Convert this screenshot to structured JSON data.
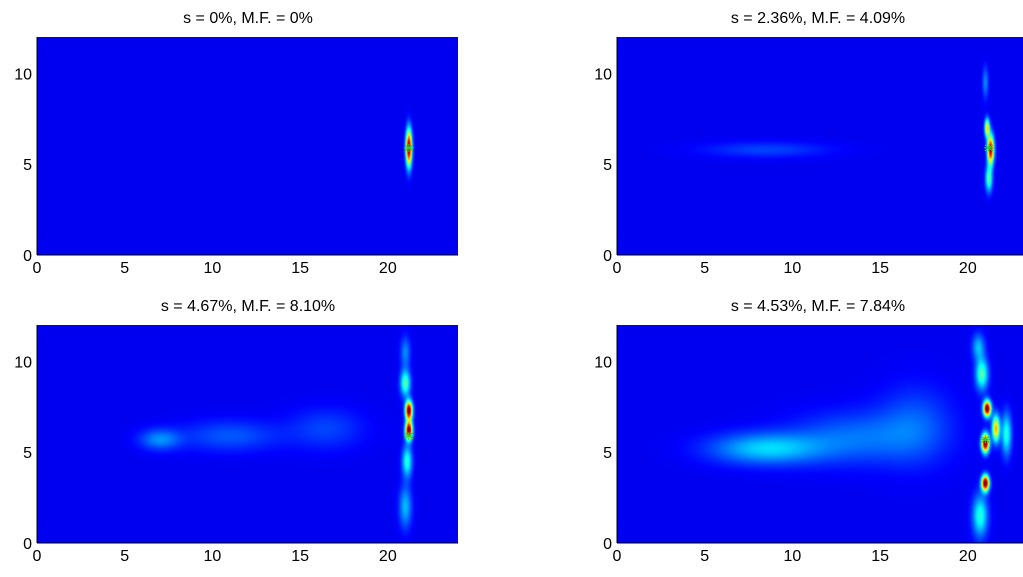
{
  "figure": {
    "background": "#ffffff",
    "plot_background": "#000080"
  },
  "chart_data": [
    {
      "type": "heatmap",
      "title": "s = 0%, M.F. = 0%",
      "xlim": [
        0,
        24
      ],
      "ylim": [
        0,
        12
      ],
      "xticks": [
        0,
        5,
        10,
        15,
        20
      ],
      "yticks": [
        0,
        5,
        10
      ],
      "colormap": "jet",
      "hotspots": [
        {
          "x": 21.2,
          "y": 5.9,
          "sx": 0.12,
          "sy": 0.7,
          "v": 0.9
        }
      ],
      "marker": {
        "x": 21.2,
        "y": 5.9,
        "color": "#33cc33"
      }
    },
    {
      "type": "heatmap",
      "title": "s = 2.36%, M.F. = 4.09%",
      "xlim": [
        0,
        24
      ],
      "ylim": [
        0,
        12
      ],
      "xticks": [
        0,
        5,
        10,
        15,
        20
      ],
      "yticks": [
        0,
        5,
        10
      ],
      "colormap": "jet",
      "hotspots": [
        {
          "x": 21.3,
          "y": 5.8,
          "sx": 0.13,
          "sy": 0.55,
          "v": 0.85
        },
        {
          "x": 21.1,
          "y": 7.0,
          "sx": 0.1,
          "sy": 0.35,
          "v": 0.55
        },
        {
          "x": 21.2,
          "y": 4.2,
          "sx": 0.14,
          "sy": 0.5,
          "v": 0.35
        },
        {
          "x": 21.0,
          "y": 9.5,
          "sx": 0.12,
          "sy": 0.6,
          "v": 0.15
        },
        {
          "x": 8.5,
          "y": 5.8,
          "sx": 2.5,
          "sy": 0.3,
          "v": 0.08
        }
      ],
      "marker": {
        "x": 21.2,
        "y": 5.9,
        "color": "#33cc33"
      }
    },
    {
      "type": "heatmap",
      "title": "s = 4.67%, M.F. = 8.10%",
      "xlim": [
        0,
        24
      ],
      "ylim": [
        0,
        12
      ],
      "xticks": [
        0,
        5,
        10,
        15,
        20
      ],
      "yticks": [
        0,
        5,
        10
      ],
      "colormap": "jet",
      "hotspots": [
        {
          "x": 21.2,
          "y": 7.3,
          "sx": 0.14,
          "sy": 0.35,
          "v": 0.95
        },
        {
          "x": 21.2,
          "y": 6.2,
          "sx": 0.14,
          "sy": 0.35,
          "v": 0.95
        },
        {
          "x": 21.0,
          "y": 8.8,
          "sx": 0.2,
          "sy": 0.5,
          "v": 0.35
        },
        {
          "x": 21.1,
          "y": 4.5,
          "sx": 0.2,
          "sy": 0.6,
          "v": 0.3
        },
        {
          "x": 21.0,
          "y": 2.0,
          "sx": 0.25,
          "sy": 0.8,
          "v": 0.2
        },
        {
          "x": 21.0,
          "y": 10.5,
          "sx": 0.2,
          "sy": 0.6,
          "v": 0.15
        },
        {
          "x": 7.0,
          "y": 5.7,
          "sx": 0.8,
          "sy": 0.4,
          "v": 0.15
        },
        {
          "x": 11.0,
          "y": 5.9,
          "sx": 2.0,
          "sy": 0.6,
          "v": 0.1
        },
        {
          "x": 16.5,
          "y": 6.3,
          "sx": 1.5,
          "sy": 0.8,
          "v": 0.08
        }
      ],
      "marker": {
        "x": 21.2,
        "y": 5.9,
        "color": "#33cc33"
      }
    },
    {
      "type": "heatmap",
      "title": "s = 4.53%, M.F. = 7.84%",
      "xlim": [
        0,
        24
      ],
      "ylim": [
        0,
        12
      ],
      "xticks": [
        0,
        5,
        10,
        15,
        20
      ],
      "yticks": [
        0,
        5,
        10
      ],
      "colormap": "jet",
      "hotspots": [
        {
          "x": 21.1,
          "y": 7.4,
          "sx": 0.15,
          "sy": 0.3,
          "v": 0.95
        },
        {
          "x": 21.0,
          "y": 5.5,
          "sx": 0.15,
          "sy": 0.35,
          "v": 0.95
        },
        {
          "x": 21.0,
          "y": 3.3,
          "sx": 0.15,
          "sy": 0.3,
          "v": 0.95
        },
        {
          "x": 21.6,
          "y": 6.3,
          "sx": 0.15,
          "sy": 0.5,
          "v": 0.6
        },
        {
          "x": 20.8,
          "y": 9.3,
          "sx": 0.25,
          "sy": 0.6,
          "v": 0.35
        },
        {
          "x": 20.7,
          "y": 1.5,
          "sx": 0.3,
          "sy": 0.8,
          "v": 0.3
        },
        {
          "x": 22.2,
          "y": 6.0,
          "sx": 0.2,
          "sy": 0.8,
          "v": 0.3
        },
        {
          "x": 20.6,
          "y": 10.8,
          "sx": 0.25,
          "sy": 0.5,
          "v": 0.2
        },
        {
          "x": 8.5,
          "y": 5.2,
          "sx": 2.2,
          "sy": 0.6,
          "v": 0.22
        },
        {
          "x": 13.5,
          "y": 5.8,
          "sx": 2.5,
          "sy": 1.0,
          "v": 0.12
        },
        {
          "x": 17.0,
          "y": 6.5,
          "sx": 1.5,
          "sy": 1.5,
          "v": 0.1
        }
      ],
      "marker": {
        "x": 21.0,
        "y": 5.7,
        "color": "#33cc33"
      }
    }
  ]
}
